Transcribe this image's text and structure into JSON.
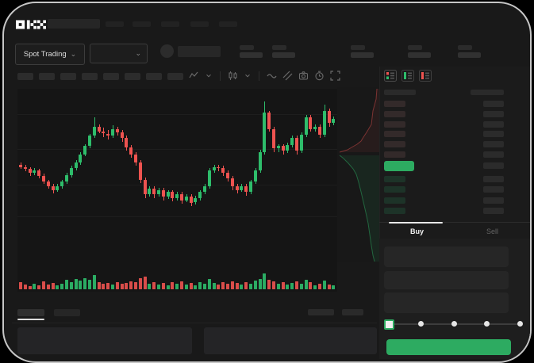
{
  "app": {
    "brand": "OKX",
    "nav_placeholder_count": 5,
    "market_selector_label": "Spot Trading",
    "header_stat_count": 5
  },
  "toolbar": {
    "timeframe_placeholder_count": 8,
    "icons": [
      "line-zigzag",
      "chevron-down",
      "candle-type",
      "chevron-down",
      "indicator-wave",
      "measure-ruler",
      "camera",
      "timer",
      "fullscreen"
    ]
  },
  "orderbook": {
    "view_mode_icons": [
      "book-combined",
      "book-bids-only",
      "book-asks-only"
    ],
    "ask_row_count": 6,
    "bid_row_count": 4,
    "price_row_has_amount": true
  },
  "trade_panel": {
    "tabs": [
      {
        "label": "Buy",
        "active": true
      },
      {
        "label": "Sell",
        "active": false
      }
    ],
    "field_count": 3,
    "slider_stops": [
      0,
      25,
      50,
      75,
      100
    ],
    "slider_value": 0
  },
  "colors": {
    "up": "#2ebd6b",
    "down": "#ee5350",
    "accent_green": "#2dab61",
    "frame_border": "#c6c6c6",
    "ask_bar": "#332a2a",
    "bid_bar": "#1d3328",
    "amount_bar": "#2b2b2b"
  },
  "chart_data": {
    "type": "candlestick",
    "title": "",
    "xlabel": "",
    "ylabel": "",
    "y_normalized_range": [
      0,
      100
    ],
    "grid": true,
    "candles": [
      [
        43,
        45,
        39,
        41
      ],
      [
        41,
        43,
        37,
        39
      ],
      [
        39,
        41,
        33,
        36
      ],
      [
        36,
        40,
        34,
        38
      ],
      [
        38,
        39,
        31,
        33
      ],
      [
        33,
        35,
        26,
        28
      ],
      [
        28,
        30,
        22,
        24
      ],
      [
        24,
        26,
        18,
        21
      ],
      [
        21,
        26,
        19,
        24
      ],
      [
        24,
        30,
        22,
        28
      ],
      [
        28,
        36,
        26,
        34
      ],
      [
        34,
        42,
        32,
        40
      ],
      [
        40,
        47,
        38,
        45
      ],
      [
        45,
        54,
        43,
        52
      ],
      [
        52,
        61,
        50,
        59
      ],
      [
        59,
        70,
        57,
        68
      ],
      [
        68,
        84,
        66,
        76
      ],
      [
        76,
        78,
        70,
        72
      ],
      [
        72,
        75,
        67,
        70
      ],
      [
        70,
        73,
        65,
        68
      ],
      [
        68,
        77,
        66,
        74
      ],
      [
        74,
        76,
        68,
        71
      ],
      [
        71,
        73,
        63,
        66
      ],
      [
        66,
        68,
        55,
        58
      ],
      [
        58,
        60,
        49,
        52
      ],
      [
        52,
        54,
        42,
        45
      ],
      [
        45,
        47,
        27,
        30
      ],
      [
        30,
        32,
        14,
        17
      ],
      [
        17,
        24,
        15,
        22
      ],
      [
        22,
        24,
        14,
        17
      ],
      [
        17,
        23,
        15,
        21
      ],
      [
        21,
        23,
        12,
        15
      ],
      [
        15,
        21,
        13,
        19
      ],
      [
        19,
        21,
        11,
        14
      ],
      [
        14,
        19,
        12,
        17
      ],
      [
        17,
        19,
        9,
        12
      ],
      [
        12,
        17,
        10,
        15
      ],
      [
        15,
        17,
        7,
        10
      ],
      [
        10,
        16,
        8,
        14
      ],
      [
        14,
        21,
        12,
        19
      ],
      [
        19,
        26,
        17,
        24
      ],
      [
        24,
        40,
        22,
        38
      ],
      [
        38,
        43,
        36,
        41
      ],
      [
        41,
        43,
        37,
        40
      ],
      [
        40,
        42,
        33,
        36
      ],
      [
        36,
        38,
        28,
        31
      ],
      [
        31,
        33,
        21,
        24
      ],
      [
        24,
        26,
        18,
        21
      ],
      [
        21,
        26,
        19,
        24
      ],
      [
        24,
        26,
        16,
        19
      ],
      [
        19,
        30,
        17,
        28
      ],
      [
        28,
        40,
        26,
        38
      ],
      [
        38,
        56,
        36,
        54
      ],
      [
        54,
        98,
        52,
        88
      ],
      [
        88,
        90,
        72,
        74
      ],
      [
        74,
        76,
        54,
        57
      ],
      [
        57,
        61,
        54,
        59
      ],
      [
        59,
        61,
        52,
        55
      ],
      [
        55,
        62,
        53,
        60
      ],
      [
        60,
        68,
        58,
        66
      ],
      [
        66,
        68,
        52,
        55
      ],
      [
        55,
        71,
        53,
        69
      ],
      [
        69,
        86,
        67,
        84
      ],
      [
        84,
        86,
        72,
        74
      ],
      [
        74,
        78,
        72,
        76
      ],
      [
        76,
        78,
        66,
        69
      ],
      [
        69,
        95,
        67,
        90
      ],
      [
        90,
        92,
        76,
        79
      ],
      [
        79,
        85,
        77,
        83
      ]
    ],
    "volume": [
      9,
      6,
      4,
      7,
      5,
      10,
      6,
      8,
      5,
      7,
      12,
      9,
      13,
      11,
      14,
      12,
      18,
      9,
      7,
      8,
      6,
      9,
      7,
      8,
      10,
      9,
      14,
      16,
      7,
      9,
      6,
      8,
      5,
      9,
      7,
      10,
      6,
      8,
      5,
      9,
      7,
      13,
      8,
      6,
      9,
      7,
      10,
      8,
      6,
      9,
      7,
      11,
      13,
      20,
      12,
      10,
      7,
      9,
      6,
      8,
      10,
      7,
      12,
      9,
      5,
      7,
      11,
      6,
      5
    ],
    "depth": {
      "asks_line": [
        [
          50,
          2
        ],
        [
          49,
          15
        ],
        [
          45,
          30
        ],
        [
          43,
          47
        ],
        [
          37,
          57
        ],
        [
          33,
          63
        ],
        [
          30,
          68
        ],
        [
          25,
          72
        ],
        [
          18,
          76
        ],
        [
          13,
          79
        ],
        [
          3,
          82
        ]
      ],
      "bids_line": [
        [
          3,
          86
        ],
        [
          8,
          90
        ],
        [
          14,
          96
        ],
        [
          20,
          103
        ],
        [
          24,
          110
        ],
        [
          27,
          120
        ],
        [
          30,
          132
        ],
        [
          33,
          145
        ],
        [
          36,
          158
        ],
        [
          39,
          172
        ],
        [
          41,
          186
        ],
        [
          43,
          200
        ],
        [
          45,
          212
        ],
        [
          47,
          220
        ]
      ]
    }
  }
}
